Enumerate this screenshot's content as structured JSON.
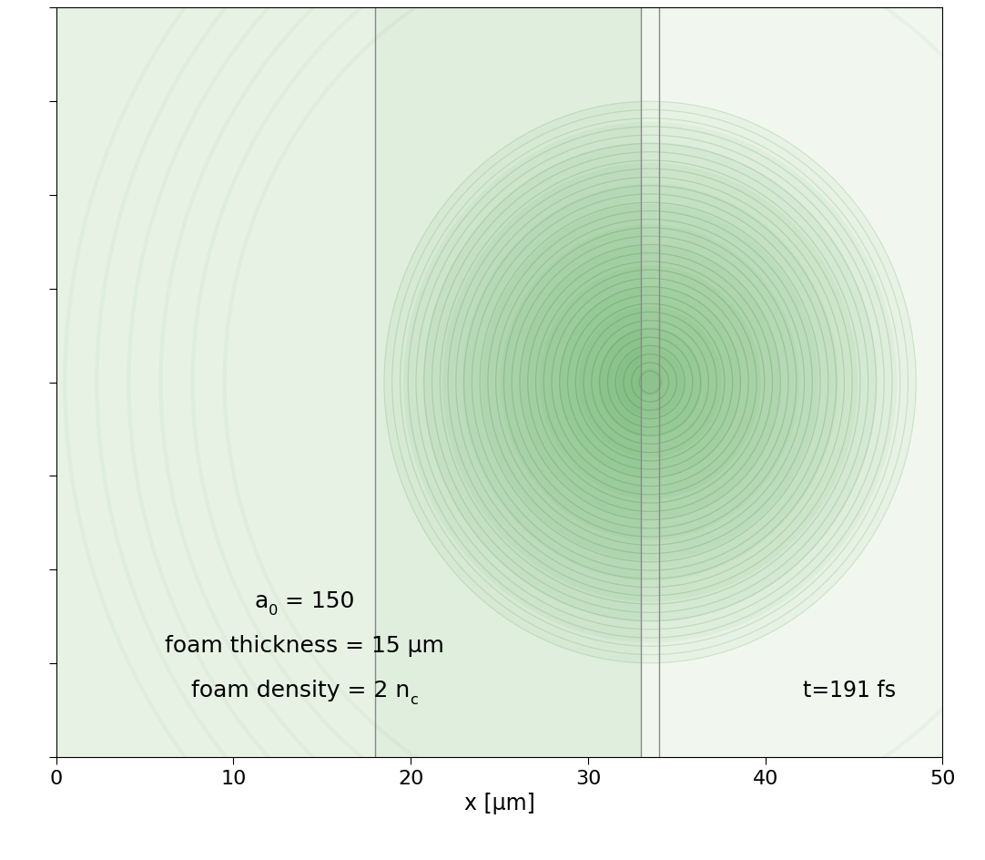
{
  "chart_data": {
    "type": "image",
    "xlabel": "x [µm]",
    "xlim": [
      0,
      50
    ],
    "xticks": [
      0,
      10,
      20,
      30,
      40,
      50
    ],
    "ylim": [
      -20,
      20
    ],
    "yticks": [
      -20,
      -15,
      -10,
      -5,
      0,
      5,
      10,
      15,
      20
    ],
    "tick_labels": "x",
    "color": "#3a9a3a",
    "vlines": [
      18,
      33,
      34
    ],
    "annotations": [
      [
        {
          "text": "a"
        },
        {
          "text": "0",
          "sub": true
        },
        {
          "text": " = 150"
        }
      ],
      [
        {
          "text": "foam thickness = 15 µm"
        }
      ],
      [
        {
          "text": "foam density = 2 n"
        },
        {
          "text": "c",
          "sub": true
        }
      ]
    ],
    "time_label": "t=191 fs"
  }
}
